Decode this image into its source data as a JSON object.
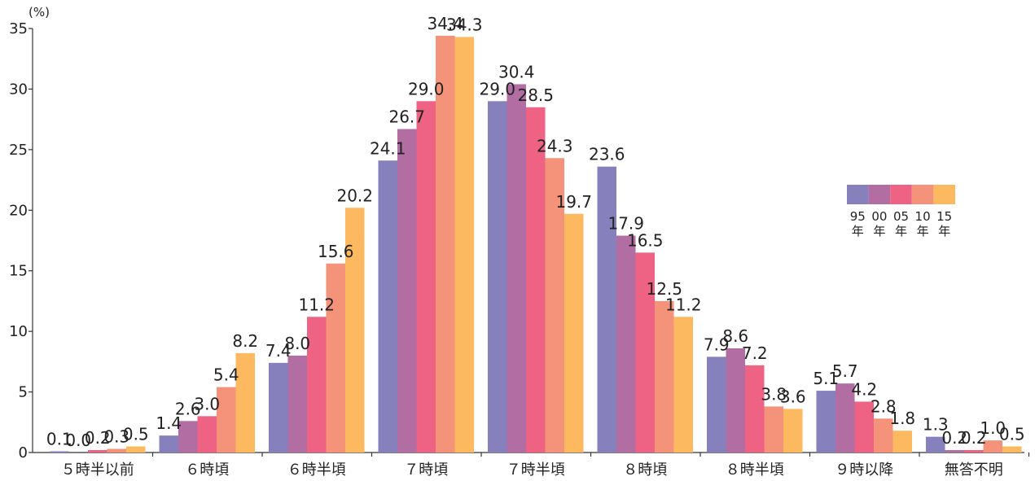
{
  "chart_data": {
    "type": "bar",
    "unit_label": "(%)",
    "categories": [
      "５時半以前",
      "６時頃",
      "６時半頃",
      "７時頃",
      "７時半頃",
      "８時頃",
      "８時半頃",
      "９時以降",
      "無答不明"
    ],
    "series": [
      {
        "name_top": "95",
        "name_bottom": "年",
        "color": "#8680bd",
        "values": [
          0.1,
          1.4,
          7.4,
          24.1,
          29.0,
          23.6,
          7.9,
          5.1,
          1.3
        ],
        "labels": [
          "0.1",
          "1.4",
          "7.4",
          "24.1",
          "29.0",
          "23.6",
          "7.9",
          "5.1",
          "1.3"
        ]
      },
      {
        "name_top": "00",
        "name_bottom": "年",
        "color": "#b26da3",
        "values": [
          0.0,
          2.6,
          8.0,
          26.7,
          30.4,
          17.9,
          8.6,
          5.7,
          0.2
        ],
        "labels": [
          "0.0",
          "2.6",
          "8.0",
          "26.7",
          "30.4",
          "17.9",
          "8.6",
          "5.7",
          "0.2"
        ]
      },
      {
        "name_top": "05",
        "name_bottom": "年",
        "color": "#ee6384",
        "values": [
          0.2,
          3.0,
          11.2,
          29.0,
          28.5,
          16.5,
          7.2,
          4.2,
          0.2
        ],
        "labels": [
          "0.2",
          "3.0",
          "11.2",
          "29.0",
          "28.5",
          "16.5",
          "7.2",
          "4.2",
          "0.2"
        ]
      },
      {
        "name_top": "10",
        "name_bottom": "年",
        "color": "#f4927a",
        "values": [
          0.3,
          5.4,
          15.6,
          34.4,
          24.3,
          12.5,
          3.8,
          2.8,
          1.0
        ],
        "labels": [
          "0.3",
          "5.4",
          "15.6",
          "34.4",
          "24.3",
          "12.5",
          "3.8",
          "2.8",
          "1.0"
        ]
      },
      {
        "name_top": "15",
        "name_bottom": "年",
        "color": "#fdb95f",
        "values": [
          0.5,
          8.2,
          20.2,
          34.3,
          19.7,
          11.2,
          3.6,
          1.8,
          0.5
        ],
        "labels": [
          "0.5",
          "8.2",
          "20.2",
          "34.3",
          "19.7",
          "11.2",
          "3.6",
          "1.8",
          "0.5"
        ]
      }
    ],
    "ylim": [
      0,
      35
    ],
    "yticks": [
      "0",
      "5",
      "10",
      "15",
      "20",
      "25",
      "30",
      "35"
    ],
    "grid": false,
    "legend_position": "right"
  }
}
